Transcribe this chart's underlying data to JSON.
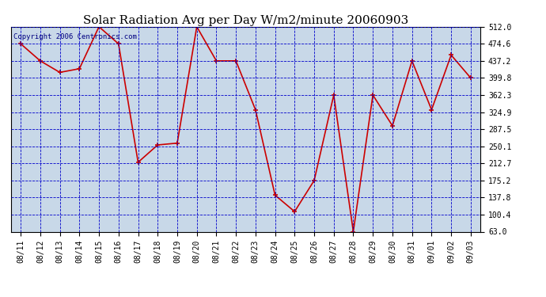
{
  "title": "Solar Radiation Avg per Day W/m2/minute 20060903",
  "copyright_text": "Copyright 2006 Centronics.com",
  "dates": [
    "08/11",
    "08/12",
    "08/13",
    "08/14",
    "08/15",
    "08/16",
    "08/17",
    "08/18",
    "08/19",
    "08/20",
    "08/21",
    "08/22",
    "08/23",
    "08/24",
    "08/25",
    "08/26",
    "08/27",
    "08/28",
    "08/29",
    "08/30",
    "08/31",
    "09/01",
    "09/02",
    "09/03"
  ],
  "values": [
    474.6,
    437.2,
    412.0,
    420.0,
    512.0,
    474.6,
    215.0,
    253.0,
    257.0,
    512.0,
    437.2,
    437.2,
    330.0,
    143.0,
    107.0,
    175.2,
    362.3,
    63.0,
    362.3,
    295.0,
    437.2,
    330.0,
    450.0,
    399.8
  ],
  "line_color": "#cc0000",
  "marker": "+",
  "marker_color": "#cc0000",
  "bg_color": "#c8d8e8",
  "grid_color": "#0000cc",
  "title_color": "#000000",
  "yticks": [
    63.0,
    100.4,
    137.8,
    175.2,
    212.7,
    250.1,
    287.5,
    324.9,
    362.3,
    399.8,
    437.2,
    474.6,
    512.0
  ],
  "ymin": 63.0,
  "ymax": 512.0,
  "outer_bg": "#ffffff",
  "title_fontsize": 11,
  "tick_fontsize": 7,
  "copyright_fontsize": 6.5
}
